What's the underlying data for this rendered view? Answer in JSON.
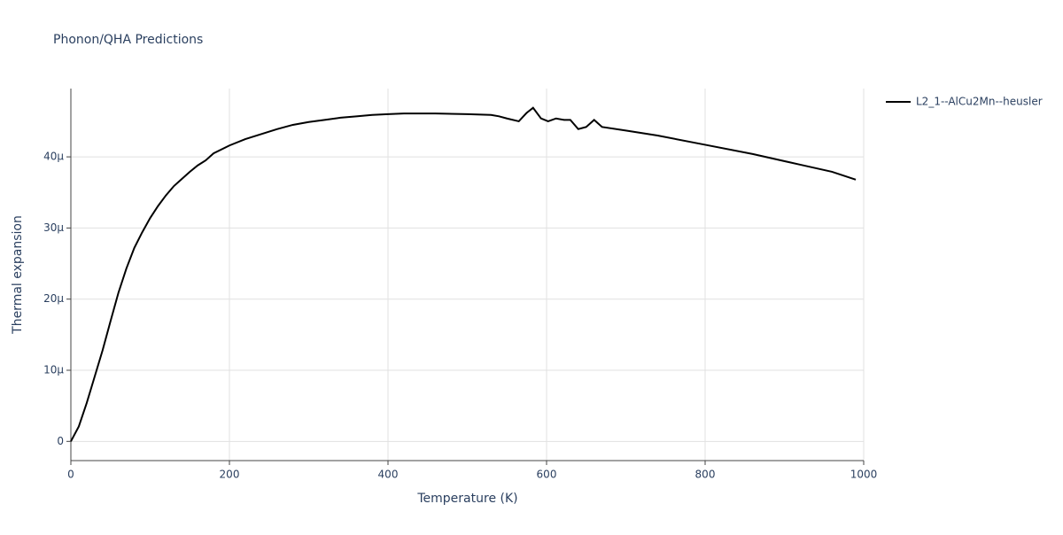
{
  "chart_data": {
    "type": "line",
    "title": "Phonon/QHA Predictions",
    "x_label": "Temperature (K)",
    "y_label": "Thermal expansion",
    "x": [
      0,
      10,
      20,
      30,
      40,
      50,
      60,
      70,
      80,
      90,
      100,
      110,
      120,
      130,
      140,
      150,
      160,
      170,
      180,
      200,
      220,
      240,
      260,
      280,
      300,
      320,
      340,
      360,
      380,
      400,
      420,
      460,
      500,
      530,
      540,
      550,
      565,
      575,
      583,
      593,
      602,
      612,
      622,
      630,
      640,
      650,
      660,
      670,
      700,
      740,
      800,
      860,
      920,
      960,
      990
    ],
    "series": [
      {
        "name": "L2_1--AlCu2Mn--heusler",
        "color": "#000000",
        "values": [
          0,
          2.1e-06,
          5.4e-06,
          9.1e-06,
          1.28e-05,
          1.69e-05,
          2.09e-05,
          2.43e-05,
          2.72e-05,
          2.94e-05,
          3.14e-05,
          3.31e-05,
          3.46e-05,
          3.59e-05,
          3.69e-05,
          3.79e-05,
          3.88e-05,
          3.95e-05,
          4.05e-05,
          4.16e-05,
          4.25e-05,
          4.32e-05,
          4.39e-05,
          4.45e-05,
          4.49e-05,
          4.52e-05,
          4.55e-05,
          4.57e-05,
          4.59e-05,
          4.6e-05,
          4.61e-05,
          4.61e-05,
          4.6e-05,
          4.59e-05,
          4.57e-05,
          4.54e-05,
          4.5e-05,
          4.62e-05,
          4.69e-05,
          4.54e-05,
          4.5e-05,
          4.54e-05,
          4.52e-05,
          4.52e-05,
          4.39e-05,
          4.42e-05,
          4.52e-05,
          4.42e-05,
          4.37e-05,
          4.3e-05,
          4.17e-05,
          4.04e-05,
          3.89e-05,
          3.79e-05,
          3.68e-05
        ]
      }
    ],
    "xlim": [
      0,
      1000
    ],
    "xticks": [
      0,
      200,
      400,
      600,
      800,
      1000
    ],
    "ylim": [
      -2.7e-06,
      4.96e-05
    ],
    "yticks": [
      0,
      {
        "value": 1e-05,
        "label": "10μ"
      },
      {
        "value": 2e-05,
        "label": "20μ"
      },
      {
        "value": 3e-05,
        "label": "30μ"
      },
      {
        "value": 4e-05,
        "label": "40μ"
      }
    ],
    "grid": true,
    "legend": "right"
  }
}
